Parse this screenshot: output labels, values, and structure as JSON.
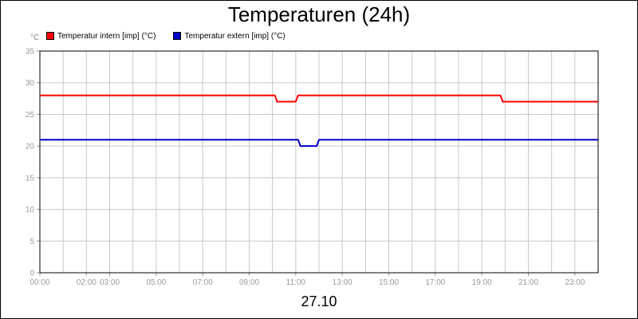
{
  "chart_data": {
    "type": "line",
    "title": "Temperaturen (24h)",
    "ylabel": "°C",
    "date_label": "27.10",
    "ylim": [
      0,
      35
    ],
    "yticks": [
      0,
      5,
      10,
      15,
      20,
      25,
      30,
      35
    ],
    "xlim": [
      0,
      24
    ],
    "grid": true,
    "legend_position": "top-left",
    "xticks": [
      {
        "h": 0,
        "label": "00:00"
      },
      {
        "h": 2,
        "label": "02:00"
      },
      {
        "h": 3,
        "label": "03:00"
      },
      {
        "h": 5,
        "label": "05:00"
      },
      {
        "h": 7,
        "label": "07:00"
      },
      {
        "h": 9,
        "label": "09:00"
      },
      {
        "h": 11,
        "label": "11:00"
      },
      {
        "h": 13,
        "label": "13:00"
      },
      {
        "h": 15,
        "label": "15:00"
      },
      {
        "h": 17,
        "label": "17:00"
      },
      {
        "h": 19,
        "label": "19:00"
      },
      {
        "h": 21,
        "label": "21:00"
      },
      {
        "h": 23,
        "label": "23:00"
      }
    ],
    "series": [
      {
        "name": "Temperatur intern [imp] (°C)",
        "color": "#ff0000",
        "x": [
          0,
          10.1,
          10.2,
          11.0,
          11.1,
          19.8,
          19.9,
          24
        ],
        "y": [
          28,
          28,
          27,
          27,
          28,
          28,
          27,
          27
        ]
      },
      {
        "name": "Temperatur extern [imp] (°C)",
        "color": "#0000cc",
        "x": [
          0,
          11.1,
          11.2,
          11.9,
          12.0,
          24
        ],
        "y": [
          21,
          21,
          20,
          20,
          21,
          21
        ]
      }
    ]
  }
}
